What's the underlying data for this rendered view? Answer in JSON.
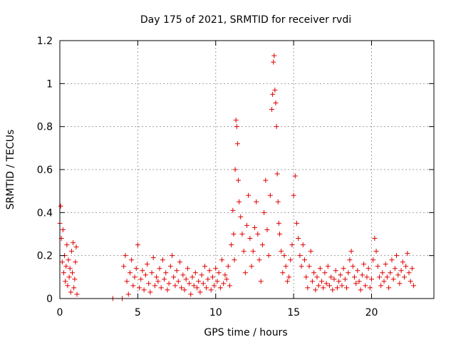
{
  "chart_data": {
    "type": "scatter",
    "title": "Day 175 of 2021, SRMTID for receiver rvdi",
    "xlabel": "GPS time / hours",
    "ylabel": "SRMTID / TECUs",
    "xlim": [
      0,
      24
    ],
    "ylim": [
      0,
      1.2
    ],
    "xticks": [
      0,
      5,
      10,
      15,
      20
    ],
    "yticks": [
      0,
      0.2,
      0.4,
      0.6,
      0.8,
      1,
      1.2
    ],
    "xtick_labels": [
      "0",
      "5",
      "10",
      "15",
      "20"
    ],
    "ytick_labels": [
      "0",
      "0.2",
      "0.4",
      "0.6",
      "0.8",
      "1",
      "1.2"
    ],
    "grid": true,
    "marker": "+",
    "marker_color": "#e00000",
    "series": [
      {
        "name": "SRMTID",
        "x": [
          0.0,
          0.05,
          0.1,
          0.15,
          0.2,
          0.25,
          0.3,
          0.35,
          0.4,
          0.45,
          0.5,
          0.55,
          0.6,
          0.65,
          0.7,
          0.75,
          0.8,
          0.85,
          0.9,
          0.95,
          1.0,
          1.05,
          1.1,
          3.4,
          4.0,
          4.1,
          4.2,
          4.3,
          4.4,
          4.5,
          4.6,
          4.7,
          4.8,
          4.9,
          5.0,
          5.1,
          5.2,
          5.3,
          5.4,
          5.5,
          5.6,
          5.7,
          5.8,
          5.9,
          6.0,
          6.1,
          6.2,
          6.3,
          6.4,
          6.5,
          6.6,
          6.7,
          6.8,
          6.9,
          7.0,
          7.1,
          7.2,
          7.3,
          7.4,
          7.5,
          7.6,
          7.7,
          7.8,
          7.9,
          8.0,
          8.1,
          8.2,
          8.3,
          8.4,
          8.5,
          8.6,
          8.7,
          8.8,
          8.9,
          9.0,
          9.1,
          9.2,
          9.3,
          9.4,
          9.5,
          9.6,
          9.7,
          9.8,
          9.9,
          10.0,
          10.1,
          10.2,
          10.3,
          10.4,
          10.5,
          10.6,
          10.7,
          10.8,
          10.9,
          11.0,
          11.1,
          11.15,
          11.2,
          11.25,
          11.3,
          11.35,
          11.4,
          11.45,
          11.5,
          11.6,
          11.7,
          11.8,
          11.9,
          12.0,
          12.1,
          12.2,
          12.3,
          12.4,
          12.5,
          12.6,
          12.7,
          12.8,
          12.9,
          13.0,
          13.1,
          13.2,
          13.3,
          13.4,
          13.5,
          13.6,
          13.65,
          13.7,
          13.75,
          13.8,
          13.85,
          13.9,
          13.95,
          14.0,
          14.05,
          14.1,
          14.2,
          14.3,
          14.4,
          14.5,
          14.6,
          14.7,
          14.8,
          14.9,
          15.0,
          15.1,
          15.2,
          15.3,
          15.4,
          15.5,
          15.6,
          15.7,
          15.8,
          15.9,
          16.0,
          16.1,
          16.2,
          16.3,
          16.4,
          16.5,
          16.6,
          16.7,
          16.8,
          16.9,
          17.0,
          17.1,
          17.2,
          17.3,
          17.4,
          17.5,
          17.6,
          17.7,
          17.8,
          17.9,
          18.0,
          18.1,
          18.2,
          18.3,
          18.4,
          18.5,
          18.6,
          18.7,
          18.8,
          18.9,
          19.0,
          19.1,
          19.2,
          19.3,
          19.4,
          19.5,
          19.6,
          19.7,
          19.8,
          19.9,
          20.0,
          20.1,
          20.2,
          20.3,
          20.4,
          20.5,
          20.6,
          20.7,
          20.8,
          20.9,
          21.0,
          21.1,
          21.2,
          21.3,
          21.4,
          21.5,
          21.6,
          21.7,
          21.8,
          21.9,
          22.0,
          22.1,
          22.2,
          22.3,
          22.4,
          22.5,
          22.6,
          22.7
        ],
        "y": [
          0.35,
          0.43,
          0.28,
          0.17,
          0.32,
          0.12,
          0.2,
          0.08,
          0.15,
          0.25,
          0.06,
          0.18,
          0.1,
          0.14,
          0.03,
          0.22,
          0.12,
          0.26,
          0.05,
          0.09,
          0.17,
          0.24,
          0.02,
          0.0,
          0.0,
          0.15,
          0.2,
          0.08,
          0.02,
          0.12,
          0.18,
          0.06,
          0.1,
          0.14,
          0.25,
          0.05,
          0.09,
          0.13,
          0.04,
          0.11,
          0.16,
          0.07,
          0.03,
          0.12,
          0.19,
          0.06,
          0.1,
          0.08,
          0.14,
          0.05,
          0.18,
          0.09,
          0.12,
          0.04,
          0.07,
          0.15,
          0.2,
          0.1,
          0.06,
          0.13,
          0.08,
          0.17,
          0.05,
          0.11,
          0.04,
          0.09,
          0.14,
          0.07,
          0.02,
          0.1,
          0.06,
          0.12,
          0.05,
          0.08,
          0.03,
          0.11,
          0.07,
          0.15,
          0.05,
          0.09,
          0.13,
          0.04,
          0.1,
          0.06,
          0.14,
          0.08,
          0.12,
          0.05,
          0.18,
          0.07,
          0.11,
          0.09,
          0.15,
          0.06,
          0.25,
          0.41,
          0.3,
          0.18,
          0.6,
          0.83,
          0.8,
          0.72,
          0.55,
          0.45,
          0.38,
          0.3,
          0.22,
          0.12,
          0.34,
          0.48,
          0.28,
          0.15,
          0.22,
          0.33,
          0.45,
          0.3,
          0.18,
          0.08,
          0.25,
          0.4,
          0.55,
          0.32,
          0.2,
          0.48,
          0.88,
          0.95,
          1.1,
          1.13,
          0.97,
          0.91,
          0.8,
          0.58,
          0.45,
          0.35,
          0.3,
          0.22,
          0.12,
          0.2,
          0.15,
          0.08,
          0.1,
          0.18,
          0.25,
          0.48,
          0.57,
          0.35,
          0.28,
          0.2,
          0.15,
          0.25,
          0.18,
          0.1,
          0.05,
          0.15,
          0.22,
          0.08,
          0.12,
          0.04,
          0.1,
          0.06,
          0.14,
          0.08,
          0.05,
          0.12,
          0.07,
          0.15,
          0.06,
          0.1,
          0.04,
          0.09,
          0.13,
          0.05,
          0.08,
          0.11,
          0.06,
          0.14,
          0.09,
          0.05,
          0.12,
          0.18,
          0.22,
          0.15,
          0.1,
          0.07,
          0.13,
          0.08,
          0.04,
          0.11,
          0.16,
          0.06,
          0.1,
          0.14,
          0.05,
          0.09,
          0.18,
          0.28,
          0.22,
          0.15,
          0.1,
          0.06,
          0.12,
          0.08,
          0.16,
          0.1,
          0.05,
          0.12,
          0.18,
          0.09,
          0.14,
          0.2,
          0.11,
          0.07,
          0.13,
          0.17,
          0.1,
          0.15,
          0.21,
          0.12,
          0.08,
          0.14,
          0.06
        ]
      }
    ]
  }
}
